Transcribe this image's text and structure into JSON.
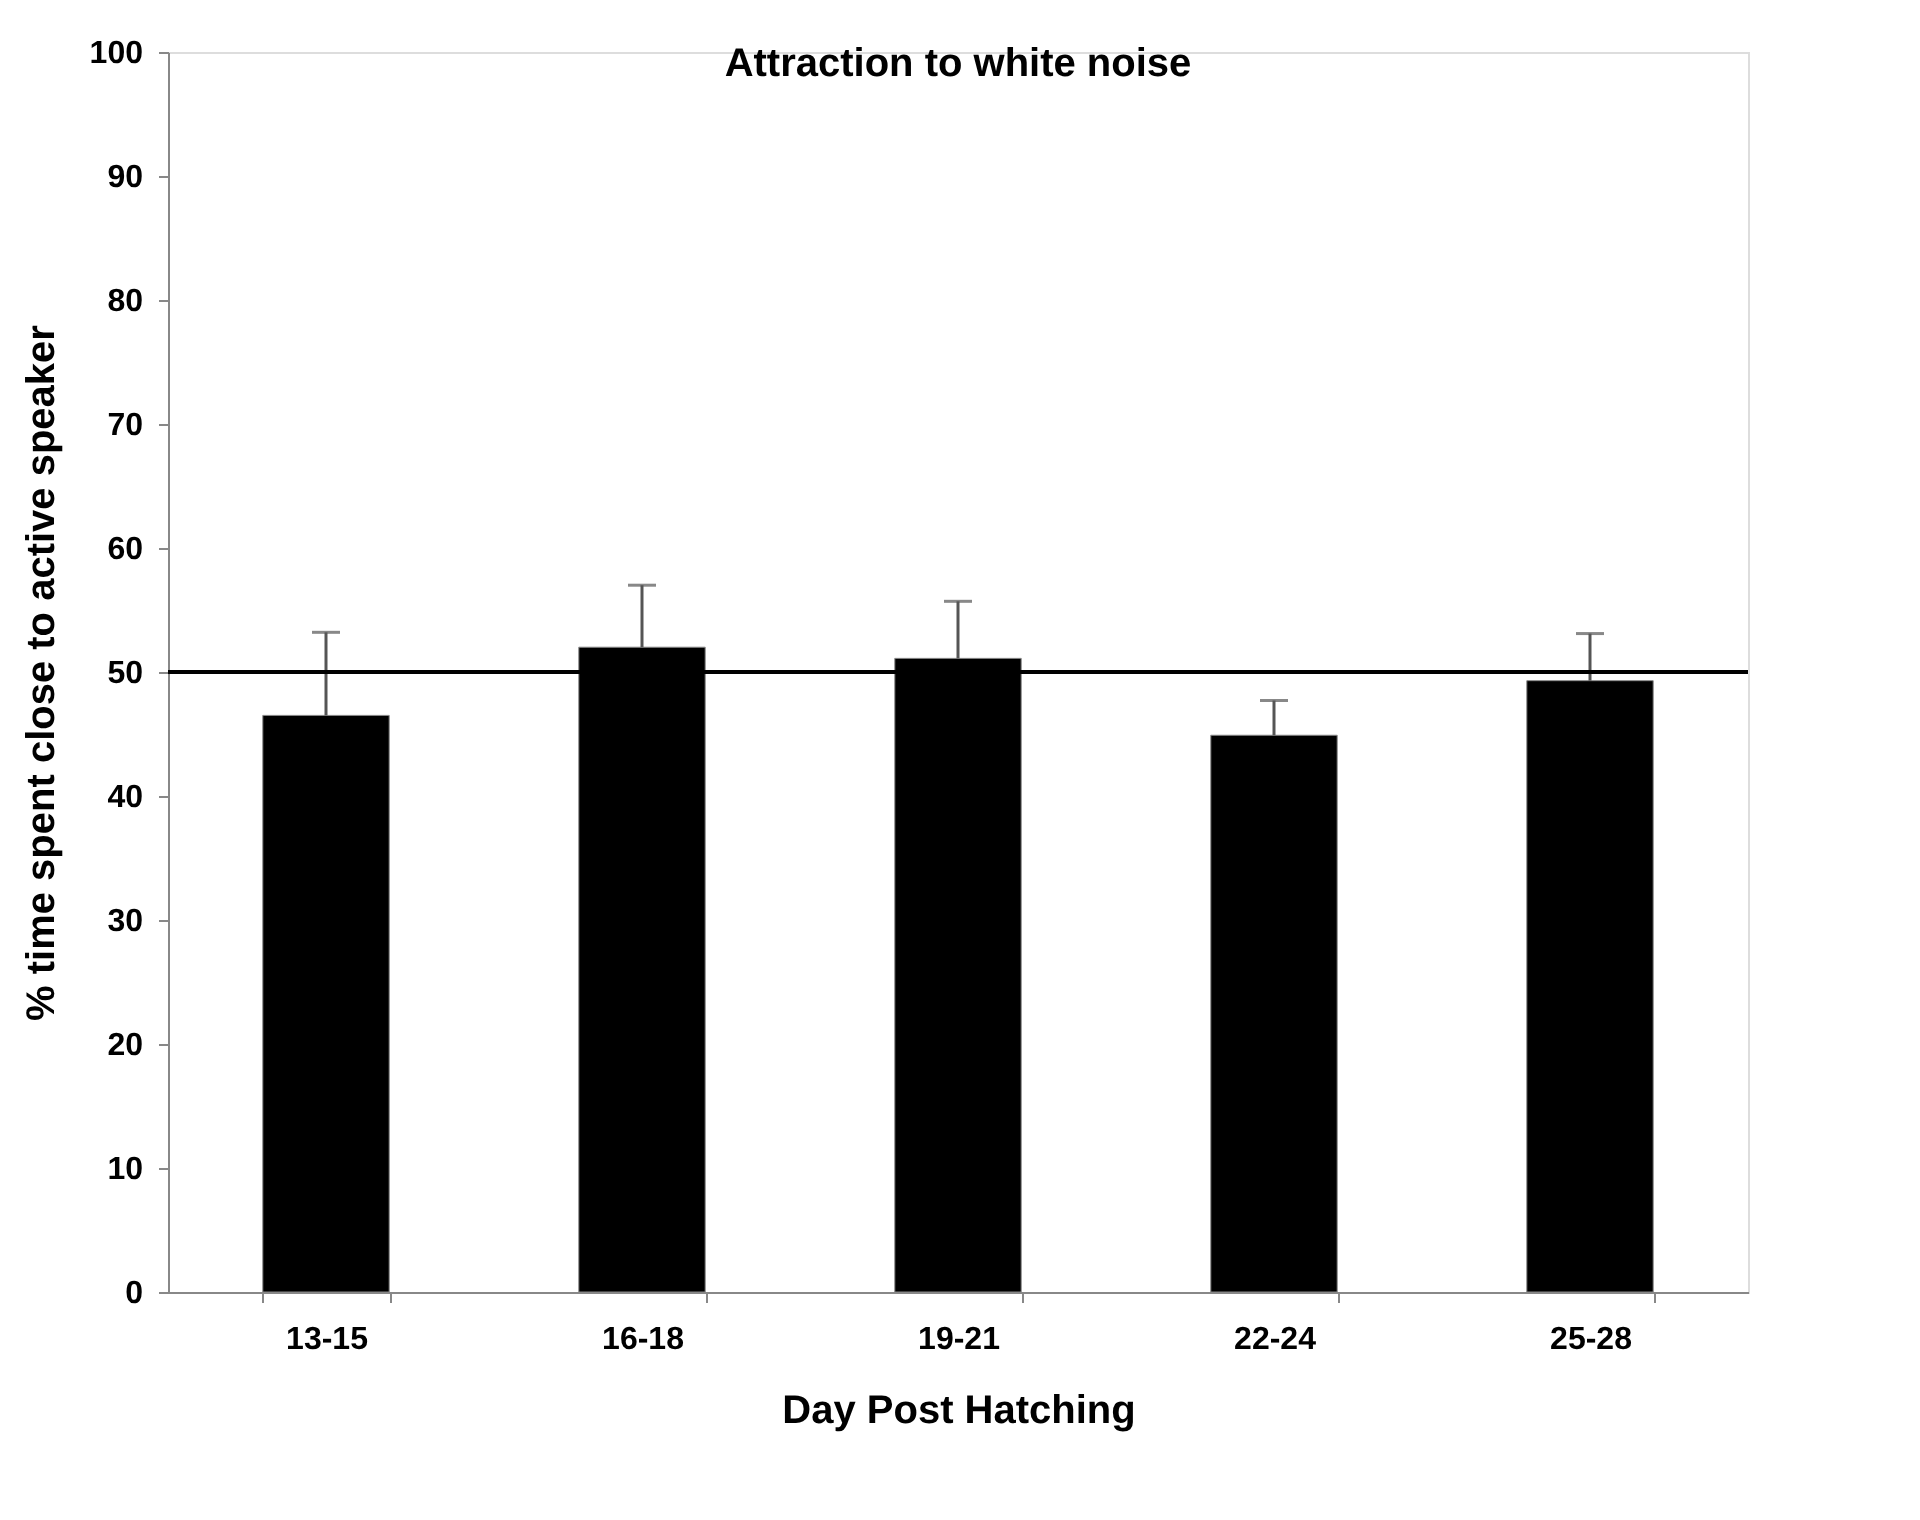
{
  "chart_data": {
    "type": "bar",
    "title": "Attraction to white noise",
    "xlabel": "Day Post Hatching",
    "ylabel": "% time spent close to active speaker",
    "categories": [
      "13-15",
      "16-18",
      "19-21",
      "22-24",
      "25-28"
    ],
    "values": [
      46.5,
      52.0,
      51.1,
      44.9,
      49.3
    ],
    "errors": [
      [
        46.5,
        53.2
      ],
      [
        52.0,
        57.0
      ],
      [
        51.1,
        55.7
      ],
      [
        44.9,
        47.7
      ],
      [
        49.3,
        53.1
      ]
    ],
    "color": "#000000",
    "ylim": [
      0,
      100
    ],
    "yticks": [
      0,
      10,
      20,
      30,
      40,
      50,
      60,
      70,
      80,
      90,
      100
    ],
    "ref_lines": [
      {
        "axis": "y",
        "value": 50,
        "color": "#000000"
      }
    ],
    "grid": false
  }
}
